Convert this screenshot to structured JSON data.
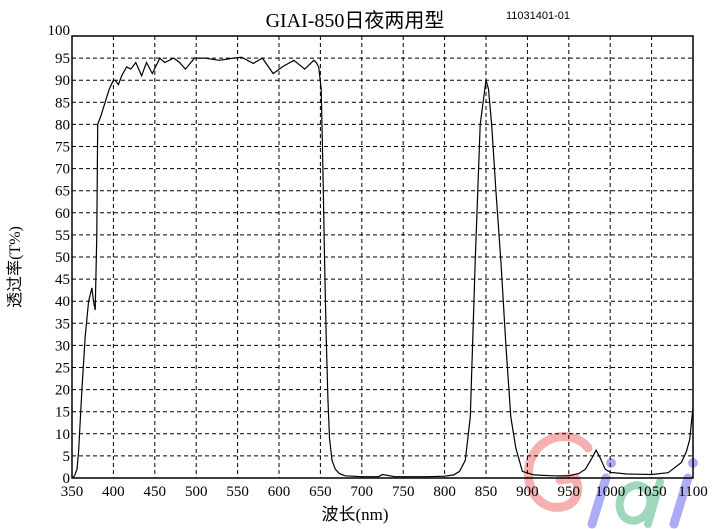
{
  "chart_data": {
    "type": "line",
    "title": "GIAI-850日夜两用型",
    "subtitle": "11031401-01",
    "xlabel": "波长(nm)",
    "ylabel": "透过率(T%)",
    "xlim": [
      350,
      1100
    ],
    "ylim": [
      0,
      100
    ],
    "xticks": [
      350,
      400,
      450,
      500,
      550,
      600,
      650,
      700,
      750,
      800,
      850,
      900,
      950,
      1000,
      1050,
      1100
    ],
    "yticks": [
      0,
      5,
      10,
      15,
      20,
      25,
      30,
      35,
      40,
      45,
      50,
      55,
      60,
      65,
      70,
      75,
      80,
      85,
      90,
      95,
      100
    ],
    "grid": true,
    "grid_style": "dashed",
    "line_color": "#000000",
    "series": [
      {
        "x": [
          350,
          353,
          356,
          358,
          362,
          366,
          370,
          374,
          376,
          378,
          380,
          381,
          385,
          390,
          395,
          400,
          402,
          406,
          410,
          416,
          421,
          427,
          434,
          440,
          447,
          456,
          462,
          473,
          480,
          487,
          498,
          511,
          528,
          545,
          555,
          569,
          580,
          593,
          604,
          618,
          631,
          642,
          645,
          648,
          651,
          653,
          655,
          657,
          659,
          661,
          664,
          668,
          673,
          680,
          700,
          720,
          725,
          740,
          780,
          800,
          811,
          818,
          825,
          831,
          837,
          843,
          850,
          853,
          857,
          862,
          868,
          874,
          880,
          886,
          894,
          908,
          930,
          950,
          962,
          970,
          978,
          983,
          988,
          994,
          1000,
          1020,
          1050,
          1070,
          1086,
          1092,
          1096,
          1100
        ],
        "y": [
          0,
          0.5,
          2,
          6,
          20,
          32,
          40,
          43,
          40,
          38,
          55,
          80,
          82,
          85,
          88,
          90,
          90,
          89,
          91,
          93,
          92.5,
          94,
          91,
          94,
          91.5,
          95,
          94,
          95,
          94,
          92.5,
          95,
          95,
          94.5,
          95,
          95.2,
          93.8,
          95,
          91.5,
          93,
          94.5,
          92.5,
          94.5,
          94,
          93,
          88,
          70,
          50,
          32,
          18,
          9,
          4,
          2,
          1,
          0.5,
          0.3,
          0.3,
          0.8,
          0.3,
          0.3,
          0.4,
          0.7,
          1.5,
          4,
          13.8,
          49,
          80,
          90,
          88,
          79.5,
          65,
          49,
          30,
          13.8,
          6.8,
          1.5,
          0.7,
          0.5,
          0.5,
          1,
          2,
          4.5,
          6.3,
          4.5,
          2,
          1.3,
          0.9,
          0.8,
          1.2,
          3.5,
          6,
          8.7,
          16
        ]
      }
    ]
  },
  "watermark": "Giai"
}
